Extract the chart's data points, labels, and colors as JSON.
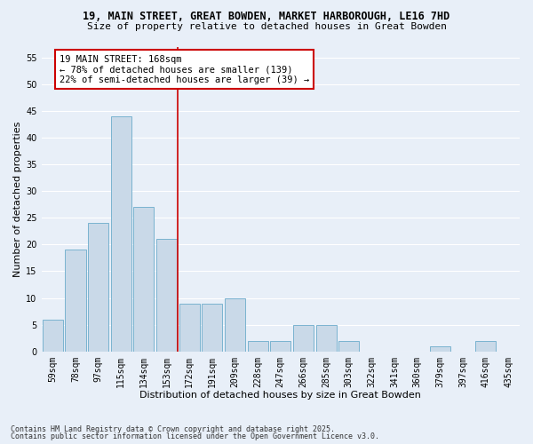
{
  "title1": "19, MAIN STREET, GREAT BOWDEN, MARKET HARBOROUGH, LE16 7HD",
  "title2": "Size of property relative to detached houses in Great Bowden",
  "xlabel": "Distribution of detached houses by size in Great Bowden",
  "ylabel": "Number of detached properties",
  "categories": [
    "59sqm",
    "78sqm",
    "97sqm",
    "115sqm",
    "134sqm",
    "153sqm",
    "172sqm",
    "191sqm",
    "209sqm",
    "228sqm",
    "247sqm",
    "266sqm",
    "285sqm",
    "303sqm",
    "322sqm",
    "341sqm",
    "360sqm",
    "379sqm",
    "397sqm",
    "416sqm",
    "435sqm"
  ],
  "values": [
    6,
    19,
    24,
    44,
    27,
    21,
    9,
    9,
    10,
    2,
    2,
    5,
    5,
    2,
    0,
    0,
    0,
    1,
    0,
    2,
    0
  ],
  "bar_color": "#c9d9e8",
  "bar_edge_color": "#7ab3d0",
  "background_color": "#e8eff8",
  "fig_background_color": "#e8eff8",
  "grid_color": "#ffffff",
  "vline_x_index": 6,
  "vline_color": "#cc0000",
  "annotation_title": "19 MAIN STREET: 168sqm",
  "annotation_line1": "← 78% of detached houses are smaller (139)",
  "annotation_line2": "22% of semi-detached houses are larger (39) →",
  "annotation_box_edgecolor": "#cc0000",
  "annotation_box_facecolor": "#ffffff",
  "ylim": [
    0,
    57
  ],
  "yticks": [
    0,
    5,
    10,
    15,
    20,
    25,
    30,
    35,
    40,
    45,
    50,
    55
  ],
  "footer1": "Contains HM Land Registry data © Crown copyright and database right 2025.",
  "footer2": "Contains public sector information licensed under the Open Government Licence v3.0.",
  "title_fontsize": 8.5,
  "subtitle_fontsize": 8,
  "axis_label_fontsize": 8,
  "tick_fontsize": 7,
  "annotation_fontsize": 7.5,
  "footer_fontsize": 6
}
